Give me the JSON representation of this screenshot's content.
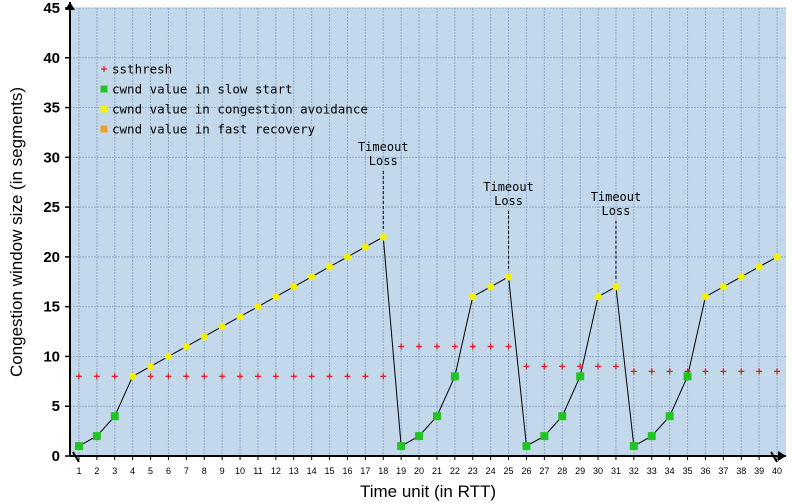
{
  "chart_data": {
    "type": "scatter",
    "title": "",
    "xlabel": "Time unit (in RTT)",
    "ylabel": "Congestion window size (in segments)",
    "xlim": [
      0.5,
      40.5
    ],
    "ylim": [
      0,
      45
    ],
    "y_ticks": [
      0,
      5,
      10,
      15,
      20,
      25,
      30,
      35,
      40,
      45
    ],
    "x_ticks": [
      1,
      2,
      3,
      4,
      5,
      6,
      7,
      8,
      9,
      10,
      11,
      12,
      13,
      14,
      15,
      16,
      17,
      18,
      19,
      20,
      21,
      22,
      23,
      24,
      25,
      26,
      27,
      28,
      29,
      30,
      31,
      32,
      33,
      34,
      35,
      36,
      37,
      38,
      39,
      40
    ],
    "grid": true,
    "legend_position": "top-left",
    "colors": {
      "background": "#c4d8ec",
      "grid": "#8fa9c6",
      "ssthresh": "#e02020",
      "slow_start": "#22c422",
      "congestion_avoidance": "#f2f200",
      "fast_recovery": "#f0a020",
      "line": "#000000"
    },
    "series": [
      {
        "name": "ssthresh",
        "marker": "plus",
        "points": [
          [
            1,
            8
          ],
          [
            2,
            8
          ],
          [
            3,
            8
          ],
          [
            4,
            8
          ],
          [
            5,
            8
          ],
          [
            6,
            8
          ],
          [
            7,
            8
          ],
          [
            8,
            8
          ],
          [
            9,
            8
          ],
          [
            10,
            8
          ],
          [
            11,
            8
          ],
          [
            12,
            8
          ],
          [
            13,
            8
          ],
          [
            14,
            8
          ],
          [
            15,
            8
          ],
          [
            16,
            8
          ],
          [
            17,
            8
          ],
          [
            18,
            8
          ],
          [
            19,
            11
          ],
          [
            20,
            11
          ],
          [
            21,
            11
          ],
          [
            22,
            11
          ],
          [
            23,
            11
          ],
          [
            24,
            11
          ],
          [
            25,
            11
          ],
          [
            26,
            9
          ],
          [
            27,
            9
          ],
          [
            28,
            9
          ],
          [
            29,
            9
          ],
          [
            30,
            9
          ],
          [
            31,
            9
          ],
          [
            32,
            8.5
          ],
          [
            33,
            8.5
          ],
          [
            34,
            8.5
          ],
          [
            35,
            8.5
          ],
          [
            36,
            8.5
          ],
          [
            37,
            8.5
          ],
          [
            38,
            8.5
          ],
          [
            39,
            8.5
          ],
          [
            40,
            8.5
          ]
        ]
      },
      {
        "name": "cwnd value in slow start",
        "marker": "square",
        "points": [
          [
            1,
            1
          ],
          [
            2,
            2
          ],
          [
            3,
            4
          ],
          [
            19,
            1
          ],
          [
            20,
            2
          ],
          [
            21,
            4
          ],
          [
            22,
            8
          ],
          [
            26,
            1
          ],
          [
            27,
            2
          ],
          [
            28,
            4
          ],
          [
            29,
            8
          ],
          [
            32,
            1
          ],
          [
            33,
            2
          ],
          [
            34,
            4
          ],
          [
            35,
            8
          ]
        ]
      },
      {
        "name": "cwnd value in congestion avoidance",
        "marker": "circle",
        "points": [
          [
            4,
            8
          ],
          [
            5,
            9
          ],
          [
            6,
            10
          ],
          [
            7,
            11
          ],
          [
            8,
            12
          ],
          [
            9,
            13
          ],
          [
            10,
            14
          ],
          [
            11,
            15
          ],
          [
            12,
            16
          ],
          [
            13,
            17
          ],
          [
            14,
            18
          ],
          [
            15,
            19
          ],
          [
            16,
            20
          ],
          [
            17,
            21
          ],
          [
            18,
            22
          ],
          [
            23,
            16
          ],
          [
            24,
            17
          ],
          [
            25,
            18
          ],
          [
            30,
            16
          ],
          [
            31,
            17
          ],
          [
            36,
            16
          ],
          [
            37,
            17
          ],
          [
            38,
            18
          ],
          [
            39,
            19
          ],
          [
            40,
            20
          ]
        ]
      },
      {
        "name": "cwnd value in fast recovery",
        "marker": "square",
        "points": []
      }
    ],
    "cwnd_line": [
      [
        1,
        1
      ],
      [
        2,
        2
      ],
      [
        3,
        4
      ],
      [
        4,
        8
      ],
      [
        5,
        9
      ],
      [
        6,
        10
      ],
      [
        7,
        11
      ],
      [
        8,
        12
      ],
      [
        9,
        13
      ],
      [
        10,
        14
      ],
      [
        11,
        15
      ],
      [
        12,
        16
      ],
      [
        13,
        17
      ],
      [
        14,
        18
      ],
      [
        15,
        19
      ],
      [
        16,
        20
      ],
      [
        17,
        21
      ],
      [
        18,
        22
      ],
      [
        19,
        1
      ],
      [
        20,
        2
      ],
      [
        21,
        4
      ],
      [
        22,
        8
      ],
      [
        23,
        16
      ],
      [
        24,
        17
      ],
      [
        25,
        18
      ],
      [
        26,
        1
      ],
      [
        27,
        2
      ],
      [
        28,
        4
      ],
      [
        29,
        8
      ],
      [
        30,
        16
      ],
      [
        31,
        17
      ],
      [
        32,
        1
      ],
      [
        33,
        2
      ],
      [
        34,
        4
      ],
      [
        35,
        8
      ],
      [
        36,
        16
      ],
      [
        37,
        17
      ],
      [
        38,
        18
      ],
      [
        39,
        19
      ],
      [
        40,
        20
      ]
    ],
    "annotations": [
      {
        "lines": [
          "Timeout",
          "Loss"
        ],
        "x": 18,
        "y": 22
      },
      {
        "lines": [
          "Timeout",
          "Loss"
        ],
        "x": 25,
        "y": 18
      },
      {
        "lines": [
          "Timeout",
          "Loss"
        ],
        "x": 31,
        "y": 17
      }
    ]
  }
}
